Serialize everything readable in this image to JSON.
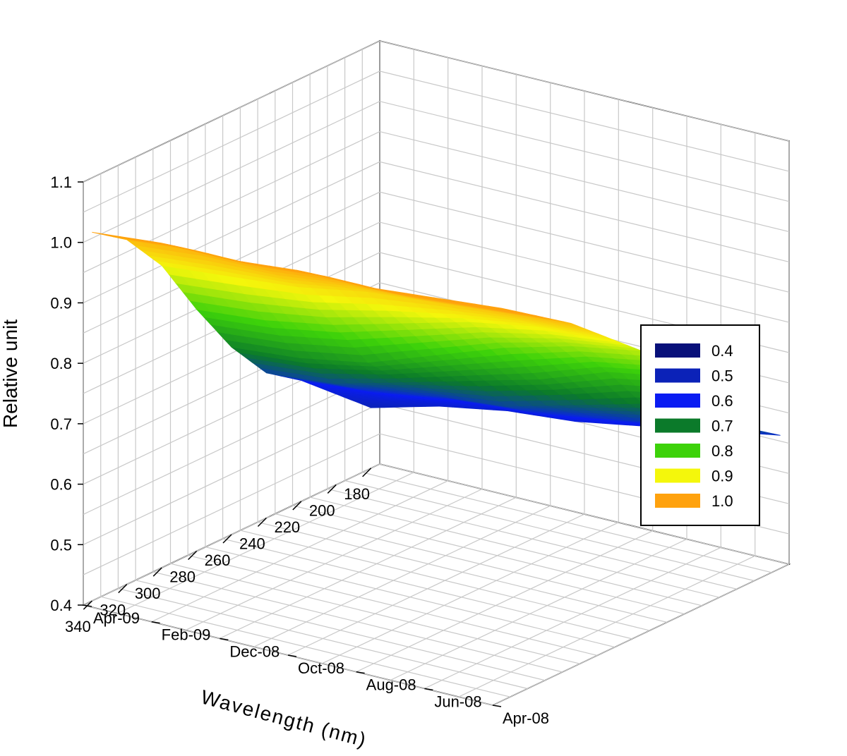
{
  "chart_data": {
    "type": "surface3d",
    "xlabel": "Wavelength (nm)",
    "ylabel": "",
    "zlabel": "Relative unit",
    "x_ticks": [
      "180",
      "200",
      "220",
      "240",
      "260",
      "280",
      "300",
      "320",
      "340"
    ],
    "y_ticks": [
      "Apr-08",
      "Jun-08",
      "Aug-08",
      "Oct-08",
      "Dec-08",
      "Feb-09",
      "Apr-09"
    ],
    "z_ticks": [
      "0.4",
      "0.5",
      "0.6",
      "0.7",
      "0.8",
      "0.9",
      "1.0",
      "1.1"
    ],
    "xlim": [
      175,
      345
    ],
    "ylim_months": [
      "Apr-08",
      "Apr-09"
    ],
    "zlim": [
      0.4,
      1.1
    ],
    "grid": true,
    "legend_position": "right",
    "legend": [
      {
        "label": "0.4",
        "color": "#08107a"
      },
      {
        "label": "0.5",
        "color": "#0b22b8"
      },
      {
        "label": "0.6",
        "color": "#0a1cf2"
      },
      {
        "label": "0.7",
        "color": "#0b7a2a"
      },
      {
        "label": "0.8",
        "color": "#3dd20a"
      },
      {
        "label": "0.9",
        "color": "#f4f70b"
      },
      {
        "label": "1.0",
        "color": "#ffa20e"
      }
    ],
    "x": [
      180,
      200,
      220,
      240,
      260,
      280,
      300,
      320,
      340
    ],
    "y": [
      "Apr-08",
      "Jun-08",
      "Aug-08",
      "Oct-08",
      "Dec-08",
      "Feb-09",
      "Apr-09"
    ],
    "z": [
      [
        0.62,
        0.66,
        0.72,
        0.8,
        0.87,
        0.92,
        0.97,
        1.01,
        1.05
      ],
      [
        0.6,
        0.64,
        0.7,
        0.78,
        0.85,
        0.91,
        0.96,
        1.0,
        1.04
      ],
      [
        0.58,
        0.62,
        0.67,
        0.74,
        0.82,
        0.89,
        0.95,
        0.99,
        1.03
      ],
      [
        0.56,
        0.6,
        0.64,
        0.71,
        0.78,
        0.86,
        0.94,
        0.99,
        1.03
      ],
      [
        0.55,
        0.59,
        0.63,
        0.68,
        0.74,
        0.83,
        0.92,
        0.98,
        1.02
      ],
      [
        0.53,
        0.57,
        0.61,
        0.65,
        0.72,
        0.81,
        0.91,
        0.98,
        1.02
      ],
      [
        0.5,
        0.55,
        0.6,
        0.64,
        0.71,
        0.8,
        0.9,
        0.97,
        1.01
      ]
    ]
  }
}
